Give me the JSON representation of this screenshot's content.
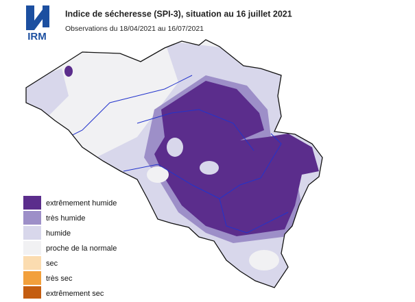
{
  "logo": "IRM",
  "header": {
    "title": "Indice de sécheresse (SPI-3), situation au 16 juillet 2021",
    "subtitle": "Observations du 18/04/2021 au 16/07/2021"
  },
  "legend": [
    {
      "label": "extrêmement humide",
      "color": "#5b2d8c"
    },
    {
      "label": "très humide",
      "color": "#9d8fc8"
    },
    {
      "label": "humide",
      "color": "#d8d7eb"
    },
    {
      "label": "proche de la normale",
      "color": "#f1f1f3"
    },
    {
      "label": "sec",
      "color": "#fbdcb0"
    },
    {
      "label": "très sec",
      "color": "#f2a03c"
    },
    {
      "label": "extrêmement sec",
      "color": "#c45d10"
    }
  ]
}
